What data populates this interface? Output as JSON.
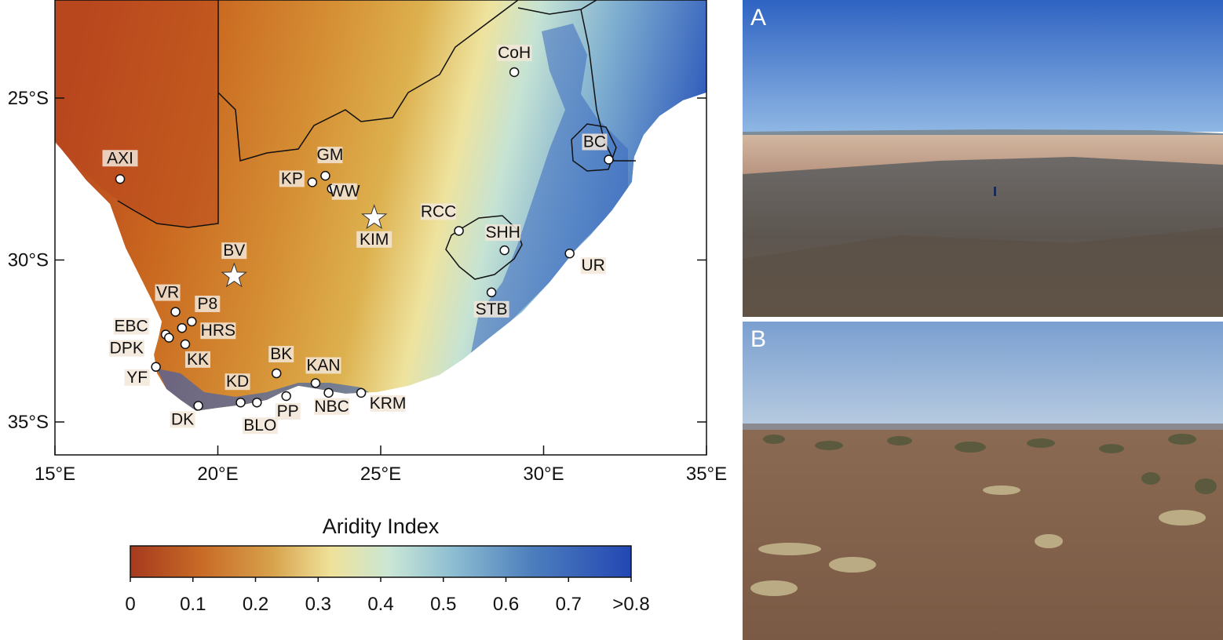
{
  "map": {
    "lat_labels": [
      "25°S",
      "30°S",
      "35°S"
    ],
    "lon_labels": [
      "15°E",
      "20°E",
      "25°E",
      "30°E",
      "35°E"
    ],
    "sites": [
      {
        "label": "CoH",
        "lon": 29.1,
        "lat": -24.2,
        "marker": "circle"
      },
      {
        "label": "BC",
        "lon": 32.0,
        "lat": -26.9,
        "marker": "circle"
      },
      {
        "label": "AXI",
        "lon": 17.0,
        "lat": -27.5,
        "marker": "circle"
      },
      {
        "label": "GM",
        "lon": 23.3,
        "lat": -27.4,
        "marker": "circle"
      },
      {
        "label": "KP",
        "lon": 22.9,
        "lat": -27.6,
        "marker": "circle"
      },
      {
        "label": "WW",
        "lon": 23.5,
        "lat": -27.8,
        "marker": "circle"
      },
      {
        "label": "KIM",
        "lon": 24.8,
        "lat": -28.7,
        "marker": "star"
      },
      {
        "label": "RCC",
        "lon": 27.4,
        "lat": -29.1,
        "marker": "circle"
      },
      {
        "label": "SHH",
        "lon": 28.8,
        "lat": -29.7,
        "marker": "circle"
      },
      {
        "label": "UR",
        "lon": 30.8,
        "lat": -29.8,
        "marker": "circle"
      },
      {
        "label": "BV",
        "lon": 20.5,
        "lat": -30.5,
        "marker": "star"
      },
      {
        "label": "STB",
        "lon": 28.4,
        "lat": -31.0,
        "marker": "circle"
      },
      {
        "label": "VR",
        "lon": 18.7,
        "lat": -31.6,
        "marker": "circle"
      },
      {
        "label": "P8",
        "lon": 19.2,
        "lat": -31.9,
        "marker": "circle"
      },
      {
        "label": "EBC",
        "lon": 18.4,
        "lat": -32.3,
        "marker": "circle"
      },
      {
        "label": "HRS",
        "lon": 18.9,
        "lat": -32.1,
        "marker": "circle"
      },
      {
        "label": "DPK",
        "lon": 18.5,
        "lat": -32.4,
        "marker": "circle"
      },
      {
        "label": "KK",
        "lon": 19.0,
        "lat": -32.6,
        "marker": "circle"
      },
      {
        "label": "YF",
        "lon": 18.1,
        "lat": -33.3,
        "marker": "circle"
      },
      {
        "label": "BK",
        "lon": 21.8,
        "lat": -33.5,
        "marker": "circle"
      },
      {
        "label": "KAN",
        "lon": 23.0,
        "lat": -33.8,
        "marker": "circle"
      },
      {
        "label": "KD",
        "lon": 20.7,
        "lat": -34.4,
        "marker": "circle"
      },
      {
        "label": "BLO",
        "lon": 21.2,
        "lat": -34.4,
        "marker": "circle"
      },
      {
        "label": "PP",
        "lon": 22.1,
        "lat": -34.2,
        "marker": "circle"
      },
      {
        "label": "NBC",
        "lon": 23.4,
        "lat": -34.1,
        "marker": "circle"
      },
      {
        "label": "KRM",
        "lon": 24.4,
        "lat": -34.1,
        "marker": "circle"
      },
      {
        "label": "DK",
        "lon": 19.4,
        "lat": -34.5,
        "marker": "circle"
      }
    ]
  },
  "colorbar": {
    "title": "Aridity Index",
    "ticks": [
      "0",
      "0.1",
      "0.2",
      "0.3",
      "0.4",
      "0.5",
      "0.6",
      "0.7",
      ">0.8"
    ],
    "colors": [
      "#a63a1e",
      "#d27a2a",
      "#d7a04a",
      "#efe29a",
      "#c9e6d6",
      "#8fbfd2",
      "#4d7fbd",
      "#2347b3"
    ]
  },
  "photos": [
    {
      "letter": "A"
    },
    {
      "letter": "B"
    }
  ]
}
